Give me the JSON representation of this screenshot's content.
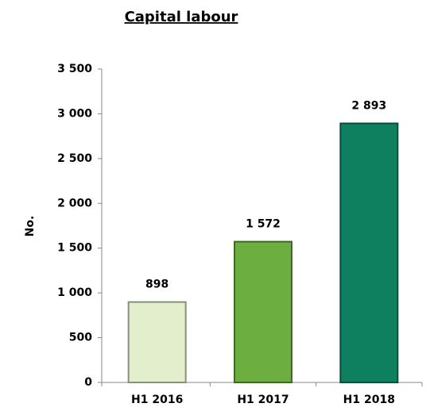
{
  "chart_data": {
    "type": "bar",
    "title": "Capital labour",
    "y_label": "No.",
    "categories": [
      "H1 2016",
      "H1 2017",
      "H1 2018"
    ],
    "values": [
      898,
      1572,
      2893
    ],
    "value_labels": [
      "898",
      "1 572",
      "2 893"
    ],
    "colors": [
      "#e3efcc",
      "#6cae3f",
      "#0e8060"
    ],
    "ylim": [
      0,
      3500
    ],
    "yticks": [
      0,
      500,
      {
        "value": 1000,
        "label": "1 000"
      },
      {
        "value": 1500,
        "label": "1 500"
      },
      {
        "value": 2000,
        "label": "2 000"
      },
      {
        "value": 2500,
        "label": "2 500"
      },
      {
        "value": 3000,
        "label": "3 000"
      },
      {
        "value": 3500,
        "label": "3 500"
      }
    ],
    "grid": false
  }
}
